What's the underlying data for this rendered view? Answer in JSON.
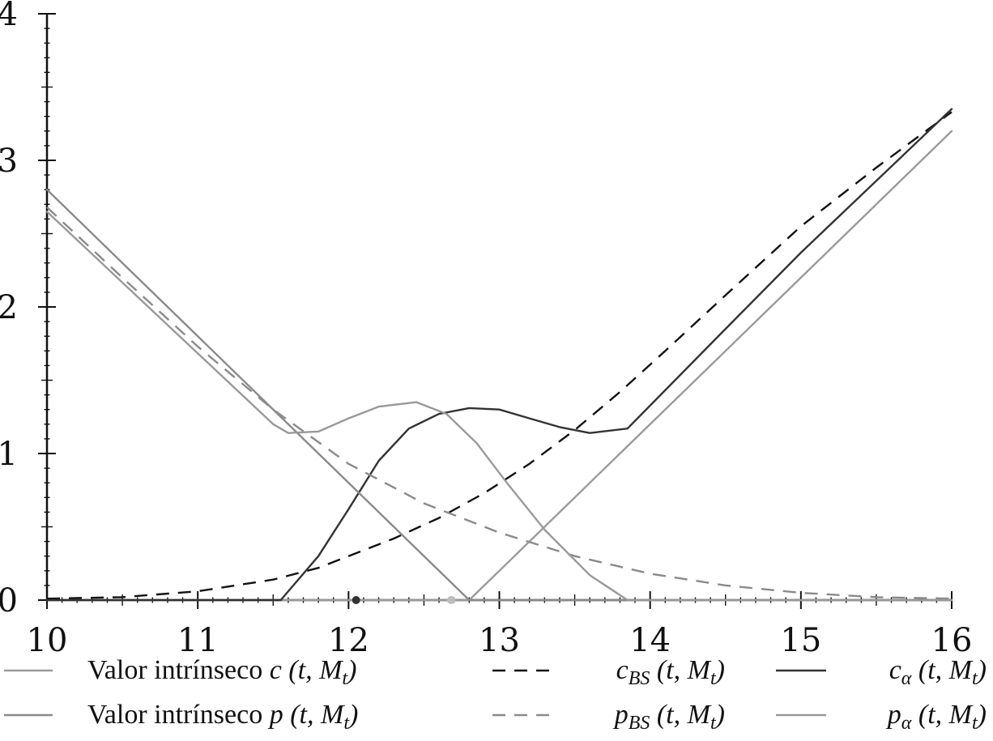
{
  "chart_data": {
    "type": "line",
    "title": "",
    "xlabel": "",
    "ylabel": "",
    "xlim": [
      10,
      16
    ],
    "ylim": [
      0,
      4
    ],
    "x_ticks": [
      "10",
      "11",
      "12",
      "13",
      "14",
      "15",
      "16"
    ],
    "y_ticks": [
      "0",
      "1",
      "2",
      "3",
      "4"
    ],
    "legend_position": "bottom",
    "grid": false,
    "series": [
      {
        "key": "intrinsic_call",
        "name": "Valor intrínseco c (t, Mt)",
        "legend_text": "Valor intrínseco",
        "legend_math": "c (t, M",
        "legend_sub": "t",
        "legend_tail": ")",
        "style": "solid",
        "color": "#9a9a9a",
        "x": [
          10,
          12.8,
          16
        ],
        "y": [
          0,
          0,
          3.2
        ]
      },
      {
        "key": "bs_call",
        "name": "cBS (t, Mt)",
        "legend_text": "",
        "legend_math": "c",
        "legend_sub": "BS",
        "legend_tail": "(t, M",
        "legend_sub2": "t",
        "legend_tail2": ")",
        "style": "dashed",
        "color": "#111111",
        "x": [
          10,
          10.5,
          11,
          11.5,
          11.8,
          12,
          12.3,
          12.6,
          12.9,
          13.2,
          13.5,
          13.8,
          14.1,
          14.5,
          15,
          15.5,
          16
        ],
        "y": [
          0.01,
          0.02,
          0.06,
          0.14,
          0.22,
          0.3,
          0.42,
          0.56,
          0.73,
          0.93,
          1.16,
          1.42,
          1.7,
          2.08,
          2.55,
          2.95,
          3.33
        ]
      },
      {
        "key": "alpha_call",
        "name": "cα (t, Mt)",
        "legend_text": "",
        "legend_math": "c",
        "legend_sub": "α",
        "legend_tail": "(t, M",
        "legend_sub2": "t",
        "legend_tail2": ")",
        "style": "solid",
        "color": "#333333",
        "x": [
          10,
          11.55,
          11.8,
          12,
          12.2,
          12.4,
          12.6,
          12.8,
          13,
          13.2,
          13.4,
          13.6,
          13.85,
          14.5,
          15,
          16
        ],
        "y": [
          0,
          0,
          0.3,
          0.62,
          0.95,
          1.17,
          1.27,
          1.31,
          1.3,
          1.24,
          1.18,
          1.14,
          1.17,
          1.85,
          2.37,
          3.35
        ]
      },
      {
        "key": "intrinsic_put",
        "name": "Valor intrínseco p (t, Mt)",
        "legend_text": "Valor intrínseco",
        "legend_math": "p (t, M",
        "legend_sub": "t",
        "legend_tail": ")",
        "style": "solid",
        "color": "#8a8a8a",
        "x": [
          10,
          12.8,
          16
        ],
        "y": [
          2.8,
          0,
          0
        ]
      },
      {
        "key": "bs_put",
        "name": "pBS (t, Mt)",
        "legend_text": "",
        "legend_math": "p",
        "legend_sub": "BS",
        "legend_tail": "(t, M",
        "legend_sub2": "t",
        "legend_tail2": ")",
        "style": "dashed",
        "color": "#8a8a8a",
        "x": [
          10,
          10.5,
          11,
          11.5,
          12,
          12.5,
          13,
          13.5,
          14,
          14.5,
          15,
          15.5,
          16
        ],
        "y": [
          2.68,
          2.2,
          1.73,
          1.3,
          0.93,
          0.66,
          0.46,
          0.3,
          0.18,
          0.1,
          0.05,
          0.02,
          0.01
        ]
      },
      {
        "key": "alpha_put",
        "name": "pα (t, Mt)",
        "legend_text": "",
        "legend_math": "p",
        "legend_sub": "α",
        "legend_tail": "(t, M",
        "legend_sub2": "t",
        "legend_tail2": ")",
        "style": "solid",
        "color": "#999999",
        "x": [
          10,
          11.5,
          11.6,
          11.8,
          12,
          12.2,
          12.45,
          12.65,
          12.85,
          13.05,
          13.3,
          13.6,
          13.85,
          16
        ],
        "y": [
          2.65,
          1.2,
          1.14,
          1.15,
          1.24,
          1.32,
          1.35,
          1.27,
          1.07,
          0.8,
          0.48,
          0.17,
          0,
          0
        ]
      }
    ],
    "markers": [
      {
        "key": "marker_dark",
        "x": 12.05,
        "y": 0,
        "color": "#333333"
      },
      {
        "key": "marker_light",
        "x": 12.68,
        "y": 0,
        "color": "#bdbdbd"
      }
    ]
  }
}
